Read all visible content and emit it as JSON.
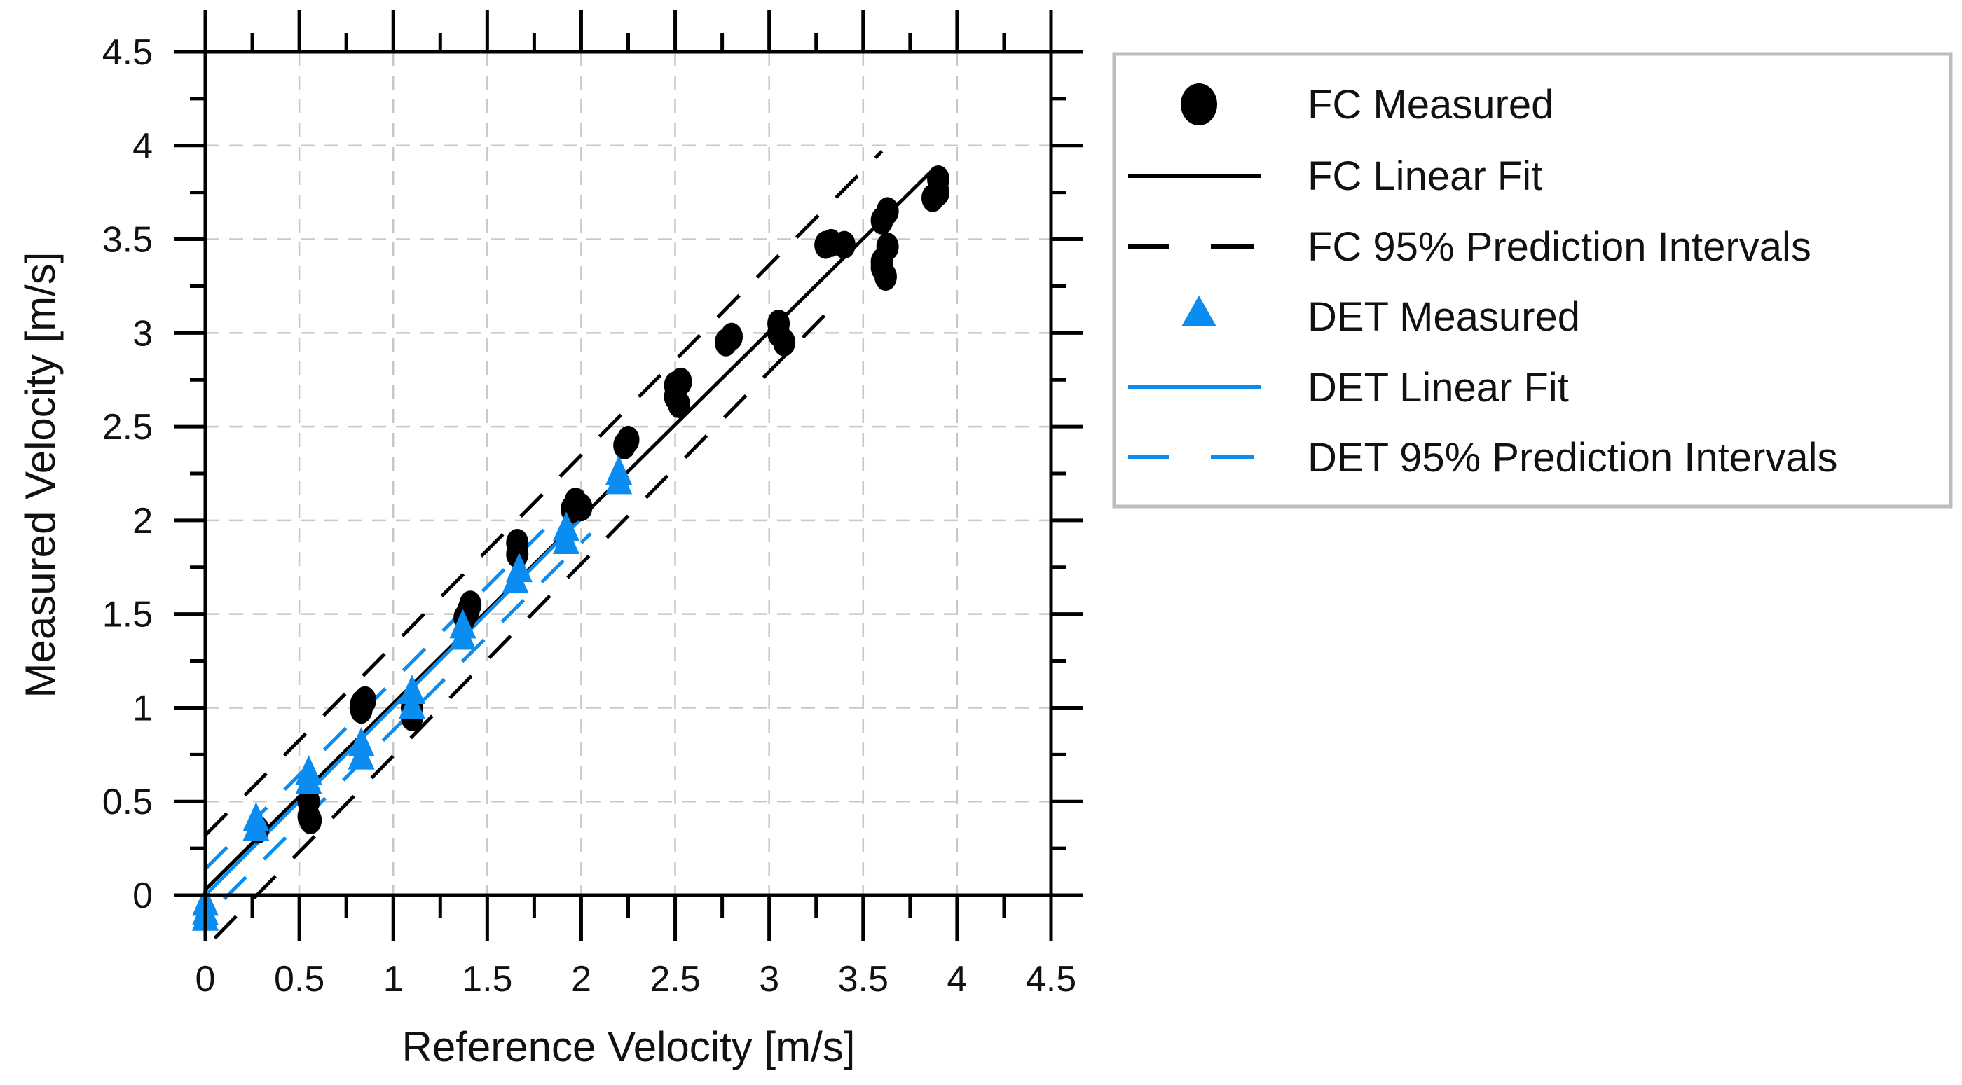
{
  "chart_data": {
    "type": "scatter",
    "title": "",
    "xlabel": "Reference Velocity [m/s]",
    "ylabel": "Measured Velocity [m/s]",
    "xlim": [
      0,
      4.5
    ],
    "ylim": [
      0,
      4.5
    ],
    "xticks": [
      "0",
      "0.5",
      "1",
      "1.5",
      "2",
      "2.5",
      "3",
      "3.5",
      "4",
      "4.5"
    ],
    "yticks": [
      "0",
      "0.5",
      "1",
      "1.5",
      "2",
      "2.5",
      "3",
      "3.5",
      "4",
      "4.5"
    ],
    "grid": true,
    "legend_position": "right",
    "colors": {
      "fc": "#000000",
      "det": "#0a8cf0",
      "grid": "#c8c8c8"
    },
    "series": [
      {
        "name": "FC Measured",
        "kind": "points",
        "marker": "circle",
        "color": "#000000",
        "points": [
          [
            0.28,
            0.35
          ],
          [
            0.55,
            0.42
          ],
          [
            0.56,
            0.4
          ],
          [
            0.55,
            0.5
          ],
          [
            0.83,
            1.02
          ],
          [
            0.83,
            0.99
          ],
          [
            0.85,
            1.04
          ],
          [
            1.1,
            0.95
          ],
          [
            1.1,
            1.0
          ],
          [
            1.38,
            1.48
          ],
          [
            1.4,
            1.52
          ],
          [
            1.41,
            1.55
          ],
          [
            1.66,
            1.88
          ],
          [
            1.66,
            1.82
          ],
          [
            1.95,
            2.06
          ],
          [
            1.97,
            2.1
          ],
          [
            2.0,
            2.07
          ],
          [
            2.23,
            2.4
          ],
          [
            2.25,
            2.43
          ],
          [
            2.5,
            2.66
          ],
          [
            2.5,
            2.72
          ],
          [
            2.53,
            2.74
          ],
          [
            2.52,
            2.62
          ],
          [
            2.77,
            2.95
          ],
          [
            2.8,
            2.98
          ],
          [
            3.05,
            3.05
          ],
          [
            3.05,
            3.0
          ],
          [
            3.08,
            2.95
          ],
          [
            3.3,
            3.47
          ],
          [
            3.33,
            3.48
          ],
          [
            3.4,
            3.47
          ],
          [
            3.6,
            3.6
          ],
          [
            3.63,
            3.65
          ],
          [
            3.6,
            3.38
          ],
          [
            3.63,
            3.46
          ],
          [
            3.62,
            3.3
          ],
          [
            3.6,
            3.35
          ],
          [
            3.87,
            3.72
          ],
          [
            3.9,
            3.82
          ],
          [
            3.9,
            3.75
          ]
        ]
      },
      {
        "name": "FC Linear Fit",
        "kind": "line",
        "color": "#000000",
        "dash": false,
        "points": [
          [
            0,
            0.03
          ],
          [
            3.85,
            3.85
          ]
        ]
      },
      {
        "name": "FC 95% Prediction Intervals",
        "kind": "lines",
        "color": "#000000",
        "dash": true,
        "lines": [
          [
            [
              0,
              0.32
            ],
            [
              3.6,
              3.97
            ]
          ],
          [
            [
              0.05,
              -0.23
            ],
            [
              3.3,
              3.1
            ]
          ]
        ]
      },
      {
        "name": "DET Measured",
        "kind": "points",
        "marker": "triangle",
        "color": "#0a8cf0",
        "points": [
          [
            0,
            -0.05
          ],
          [
            0,
            -0.1
          ],
          [
            0,
            -0.13
          ],
          [
            0.27,
            0.35
          ],
          [
            0.27,
            0.4
          ],
          [
            0.55,
            0.6
          ],
          [
            0.55,
            0.65
          ],
          [
            0.83,
            0.73
          ],
          [
            0.83,
            0.8
          ],
          [
            1.1,
            1.0
          ],
          [
            1.1,
            1.08
          ],
          [
            1.37,
            1.37
          ],
          [
            1.37,
            1.43
          ],
          [
            1.65,
            1.67
          ],
          [
            1.67,
            1.73
          ],
          [
            1.92,
            1.88
          ],
          [
            1.92,
            1.95
          ],
          [
            2.2,
            2.2
          ],
          [
            2.2,
            2.25
          ]
        ]
      },
      {
        "name": "DET Linear Fit",
        "kind": "line",
        "color": "#0a8cf0",
        "dash": false,
        "points": [
          [
            0,
            0.0
          ],
          [
            2.05,
            2.06
          ]
        ]
      },
      {
        "name": "DET 95%  Prediction Intervals",
        "kind": "lines",
        "color": "#0a8cf0",
        "dash": true,
        "lines": [
          [
            [
              0,
              0.14
            ],
            [
              2.05,
              2.2
            ]
          ],
          [
            [
              0.1,
              -0.02
            ],
            [
              2.05,
              1.93
            ]
          ]
        ]
      }
    ]
  }
}
